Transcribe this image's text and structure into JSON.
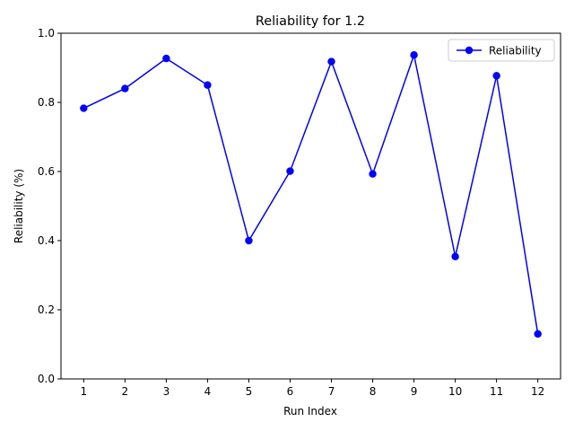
{
  "chart_data": {
    "type": "line",
    "title": "Reliability for 1.2",
    "xlabel": "Run Index",
    "ylabel": "Reliability (%)",
    "x": [
      1,
      2,
      3,
      4,
      5,
      6,
      7,
      8,
      9,
      10,
      11,
      12
    ],
    "xticks": [
      "1",
      "2",
      "3",
      "4",
      "5",
      "6",
      "7",
      "8",
      "9",
      "10",
      "11",
      "12"
    ],
    "yticks": [
      "0.0",
      "0.2",
      "0.4",
      "0.6",
      "0.8",
      "1.0"
    ],
    "ylim": [
      0,
      1
    ],
    "grid": false,
    "legend_position": "top-right",
    "series": [
      {
        "name": "Reliability",
        "color": "#0000ff",
        "marker": "circle",
        "values": [
          0.783,
          0.84,
          0.927,
          0.85,
          0.4,
          0.601,
          0.918,
          0.593,
          0.937,
          0.354,
          0.877,
          0.13
        ]
      }
    ]
  }
}
